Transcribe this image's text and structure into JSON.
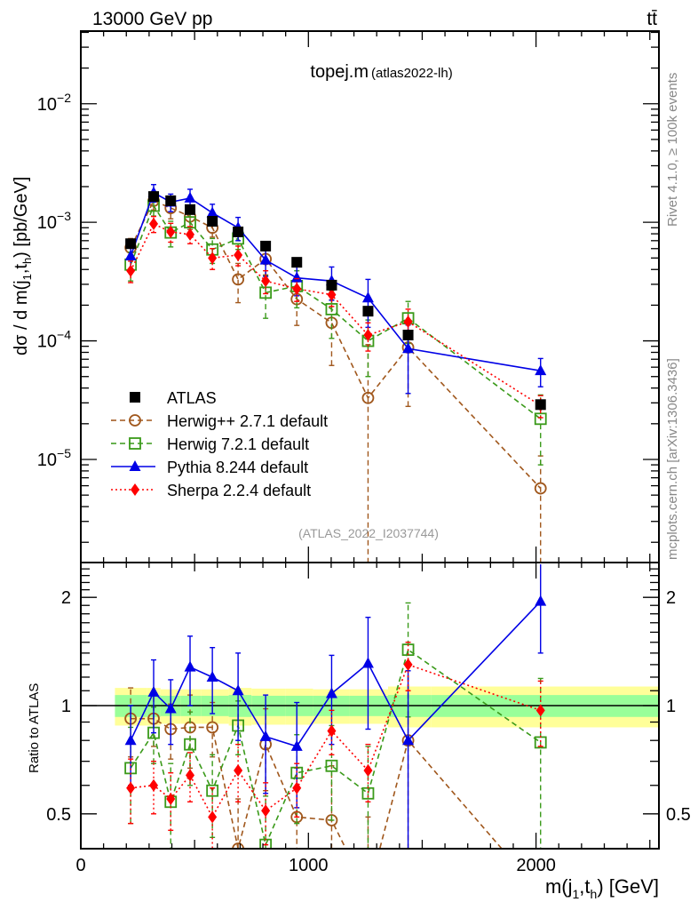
{
  "header": {
    "energy_label": "13000 GeV pp",
    "process_label": "tt̄",
    "plot_title": "topej.m",
    "plot_subtitle": "(atlas2022-lh)",
    "analysis_id": "(ATLAS_2022_I2037744)",
    "side_label_top": "Rivet 4.1.0, ≥ 100k events",
    "side_label_bottom": "mcplots.cern.ch [arXiv:1306.3436]"
  },
  "chart_data": [
    {
      "type": "line",
      "panel": "main",
      "title": "topej.m (atlas2022-lh)",
      "xlabel": "m(j1,th) [GeV]",
      "ylabel": "dσ / d m(j1,th) [pb/GeV]",
      "yscale": "log",
      "xlim": [
        0,
        2540
      ],
      "ylim": [
        1.35e-06,
        0.041
      ],
      "ytick_labels": [
        "10^-5",
        "10^-4",
        "10^-3",
        "10^-2"
      ],
      "ytick_values": [
        1e-05,
        0.0001,
        0.001,
        0.01
      ],
      "legend_position": "lower-left",
      "x": [
        219,
        320,
        395,
        480,
        578,
        691,
        812,
        949,
        1102,
        1262,
        1438,
        2020
      ],
      "series": [
        {
          "name": "ATLAS",
          "style": "data",
          "color": "#000000",
          "marker": "square",
          "values": [
            0.00066,
            0.00165,
            0.00152,
            0.00128,
            0.00102,
            0.00083,
            0.00063,
            0.00046,
            0.000295,
            0.000178,
            0.000112,
            2.9e-05
          ]
        },
        {
          "name": "Herwig++ 2.7.1 default",
          "style": "dashed",
          "color": "#a0571c",
          "marker": "open-circle",
          "values": [
            0.00061,
            0.00152,
            0.00132,
            0.00112,
            0.0009,
            0.00033,
            0.00049,
            0.000225,
            0.000142,
            3.3e-05,
            8.8e-05,
            5.7e-06
          ],
          "err_low": [
            0.00012,
            0.00025,
            0.00025,
            0.00025,
            0.00015,
            0.00012,
            0.00013,
            9e-05,
            8e-05,
            3.3e-05,
            6e-05,
            5.7e-06
          ],
          "err_high": [
            0.00012,
            0.00025,
            0.00025,
            0.00025,
            0.00015,
            0.00012,
            0.00013,
            9e-05,
            8e-05,
            6e-05,
            6e-05,
            5e-06
          ]
        },
        {
          "name": "Herwig 7.2.1 default",
          "style": "dashed",
          "color": "#3a9a1a",
          "marker": "open-square",
          "values": [
            0.00044,
            0.00138,
            0.00082,
            0.001,
            0.00059,
            0.00073,
            0.000255,
            0.00029,
            0.000185,
            0.0001,
            0.000155,
            2.2e-05
          ],
          "err_low": [
            0.00012,
            0.00025,
            0.0002,
            0.0002,
            0.00014,
            0.00014,
            0.0001,
            0.0001,
            8e-05,
            5e-05,
            6e-05,
            1.3e-05
          ],
          "err_high": [
            0.00012,
            0.00025,
            0.0002,
            0.0002,
            0.00014,
            0.00014,
            0.0001,
            0.0001,
            8e-05,
            5e-05,
            6e-05,
            1.3e-05
          ]
        },
        {
          "name": "Pythia 8.244 default",
          "style": "solid",
          "color": "#0000e6",
          "marker": "triangle",
          "values": [
            0.00052,
            0.00178,
            0.00148,
            0.0016,
            0.0012,
            0.0009,
            0.00048,
            0.00034,
            0.00032,
            0.00023,
            8.6e-05,
            5.6e-05
          ],
          "err_low": [
            0.00012,
            0.0003,
            0.00025,
            0.0003,
            0.00022,
            0.0002,
            0.00013,
            0.0001,
            0.0001,
            0.0001,
            5e-05,
            1.5e-05
          ],
          "err_high": [
            0.00012,
            0.0003,
            0.00025,
            0.0003,
            0.00022,
            0.0002,
            0.00013,
            0.0001,
            0.0001,
            0.0001,
            5e-05,
            1.5e-05
          ]
        },
        {
          "name": "Sherpa 2.2.4 default",
          "style": "dotted",
          "color": "#ff0000",
          "marker": "diamond",
          "values": [
            0.00039,
            0.00097,
            0.00083,
            0.00079,
            0.0005,
            0.00053,
            0.00032,
            0.000275,
            0.000245,
            0.000112,
            0.000145,
            2.85e-05
          ],
          "err_low": [
            8e-05,
            0.00015,
            0.00015,
            0.00013,
            0.0001,
            0.0001,
            7e-05,
            6e-05,
            5e-05,
            3e-05,
            4e-05,
            6e-06
          ],
          "err_high": [
            8e-05,
            0.00015,
            0.00015,
            0.00013,
            0.0001,
            0.0001,
            7e-05,
            6e-05,
            5e-05,
            3e-05,
            4e-05,
            6e-06
          ]
        }
      ]
    },
    {
      "type": "line",
      "panel": "ratio",
      "ylabel": "Ratio to ATLAS",
      "xlabel": "m(j1,th) [GeV]",
      "yscale": "log",
      "xlim": [
        0,
        2540
      ],
      "ylim": [
        0.4,
        2.5
      ],
      "ytick_labels": [
        "0.5",
        "1",
        "2"
      ],
      "ytick_values": [
        0.5,
        1,
        2
      ],
      "xtick_labels": [
        "0",
        "1000",
        "2000"
      ],
      "xtick_values": [
        0,
        1000,
        2000
      ],
      "reference_line": 1,
      "band_edges": [
        150,
        290,
        350,
        440,
        530,
        650,
        750,
        900,
        1020,
        1180,
        1350,
        1540,
        2550
      ],
      "band_inner_halfwidth": [
        0.07,
        0.07,
        0.065,
        0.065,
        0.065,
        0.07,
        0.065,
        0.065,
        0.065,
        0.065,
        0.07,
        0.07
      ],
      "band_outer_halfwidth": [
        0.12,
        0.12,
        0.11,
        0.11,
        0.11,
        0.12,
        0.115,
        0.115,
        0.11,
        0.11,
        0.13,
        0.13
      ],
      "band_colors": {
        "inner": "#99ff99",
        "outer": "#ffff99"
      },
      "x": [
        219,
        320,
        395,
        480,
        578,
        691,
        812,
        949,
        1102,
        1262,
        1438,
        2020
      ],
      "series": [
        {
          "name": "Herwig++ 2.7.1 default",
          "color": "#a0571c",
          "style": "dashed",
          "marker": "open-circle",
          "values": [
            0.92,
            0.92,
            0.86,
            0.87,
            0.87,
            0.4,
            0.78,
            0.49,
            0.48,
            0.19,
            0.8,
            0.2
          ],
          "err_low": [
            0.2,
            0.15,
            0.15,
            0.2,
            0.15,
            0.15,
            0.2,
            0.18,
            0.2,
            0.2,
            0.5,
            0.2
          ],
          "err_high": [
            0.2,
            0.15,
            0.15,
            0.2,
            0.15,
            0.15,
            0.2,
            0.18,
            0.2,
            0.3,
            0.5,
            0.2
          ]
        },
        {
          "name": "Herwig 7.2.1 default",
          "color": "#3a9a1a",
          "style": "dashed",
          "marker": "open-square",
          "values": [
            0.67,
            0.84,
            0.54,
            0.78,
            0.58,
            0.88,
            0.41,
            0.65,
            0.68,
            0.57,
            1.43,
            0.79
          ],
          "err_low": [
            0.2,
            0.15,
            0.15,
            0.18,
            0.15,
            0.15,
            0.15,
            0.18,
            0.2,
            0.2,
            0.5,
            0.4
          ],
          "err_high": [
            0.2,
            0.15,
            0.15,
            0.18,
            0.15,
            0.15,
            0.15,
            0.18,
            0.2,
            0.2,
            0.5,
            0.4
          ]
        },
        {
          "name": "Pythia 8.244 default",
          "color": "#0000e6",
          "style": "solid",
          "marker": "triangle",
          "values": [
            0.8,
            1.09,
            0.98,
            1.28,
            1.2,
            1.1,
            0.82,
            0.77,
            1.08,
            1.31,
            0.8,
            1.95
          ],
          "err_low": [
            0.2,
            0.25,
            0.2,
            0.28,
            0.25,
            0.3,
            0.25,
            0.25,
            0.3,
            0.45,
            0.45,
            0.55
          ],
          "err_high": [
            0.2,
            0.25,
            0.2,
            0.28,
            0.25,
            0.3,
            0.25,
            0.25,
            0.3,
            0.45,
            0.45,
            0.55
          ]
        },
        {
          "name": "Sherpa 2.2.4 default",
          "color": "#ff0000",
          "style": "dotted",
          "marker": "diamond",
          "values": [
            0.59,
            0.6,
            0.55,
            0.64,
            0.49,
            0.66,
            0.51,
            0.59,
            0.85,
            0.66,
            1.3,
            0.97
          ],
          "err_low": [
            0.12,
            0.1,
            0.1,
            0.1,
            0.1,
            0.12,
            0.1,
            0.1,
            0.12,
            0.12,
            0.2,
            0.2
          ],
          "err_high": [
            0.12,
            0.1,
            0.1,
            0.1,
            0.1,
            0.12,
            0.1,
            0.1,
            0.12,
            0.12,
            0.2,
            0.2
          ]
        }
      ]
    }
  ]
}
